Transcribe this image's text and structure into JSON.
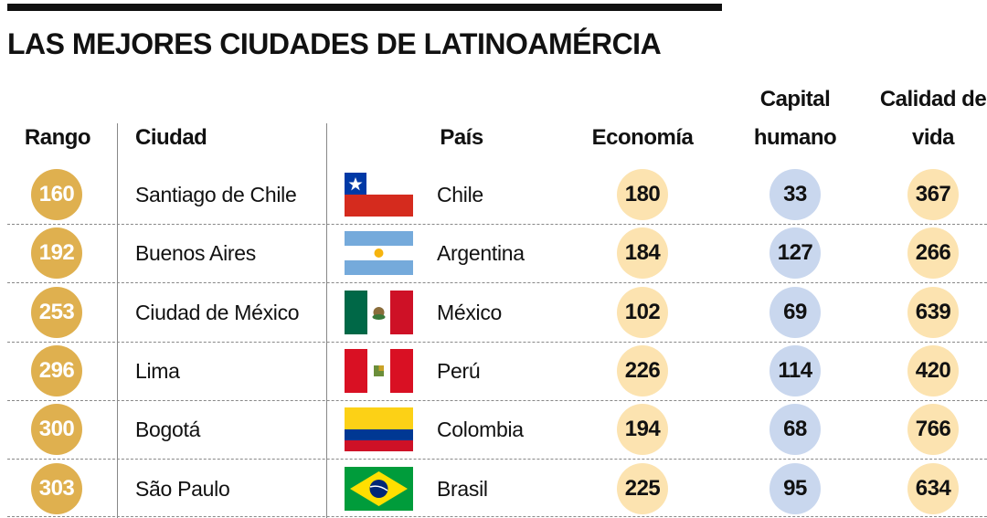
{
  "header": {
    "title": "LAS MEJORES CIUDADES DE LATINOAMÉRCIA"
  },
  "table": {
    "columns": [
      "Rango",
      "Ciudad",
      "País",
      "Economía",
      "Capital humano",
      "Calidad de vida"
    ],
    "rows": [
      [
        "160",
        "Santiago de Chile",
        "Chile",
        "180",
        "33",
        "367"
      ],
      [
        "192",
        "Buenos Aires",
        "Argentina",
        "184",
        "127",
        "266"
      ],
      [
        "253",
        "Ciudad de México",
        "México",
        "102",
        "69",
        "639"
      ],
      [
        "296",
        "Lima",
        "Perú",
        "226",
        "114",
        "420"
      ],
      [
        "300",
        "Bogotá",
        "Colombia",
        "194",
        "68",
        "766"
      ],
      [
        "303",
        "São Paulo",
        "Brasil",
        "225",
        "95",
        "634"
      ]
    ]
  }
}
